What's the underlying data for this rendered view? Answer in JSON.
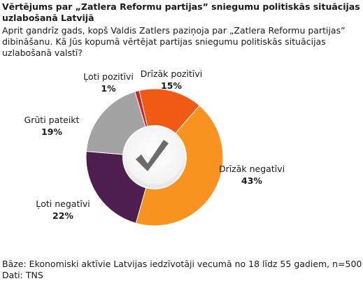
{
  "title": "Vērtējums par  „Zatlera Reformu partijas” sniegumu politiskās situācijas uzlabošanā Latvijā",
  "question": "Aprit gandrīz gads, kopš Valdis Zatlers paziņoja par „Zatlera Reformu partijas” dibināšanu. Kā Jūs kopumā vērtējat partijas sniegumu politiskās situācijas uzlabošanā valstī?",
  "footer": {
    "base": "Bāze: Ekonomiski aktīvie Latvijas iedzīvotāji vecumā no 18 līdz 55 gadiem, n=500",
    "source": "Dati: TNS"
  },
  "center_icon": "checkmark-icon",
  "chart_data": {
    "type": "pie",
    "style": "donut",
    "title": "",
    "slices": [
      {
        "label": "Drīzāk pozitīvi",
        "value": 15,
        "value_label": "15%",
        "color": "#F05A14"
      },
      {
        "label": "Drīzāk negatīvi",
        "value": 43,
        "value_label": "43%",
        "color": "#F7931E"
      },
      {
        "label": "Ļoti negatīvi",
        "value": 22,
        "value_label": "22%",
        "color": "#4E1F4E"
      },
      {
        "label": "Grūti pateikt",
        "value": 19,
        "value_label": "19%",
        "color": "#A3A3A3"
      },
      {
        "label": "Ļoti pozitīvi",
        "value": 1,
        "value_label": "1%",
        "color": "#D42020"
      }
    ]
  }
}
